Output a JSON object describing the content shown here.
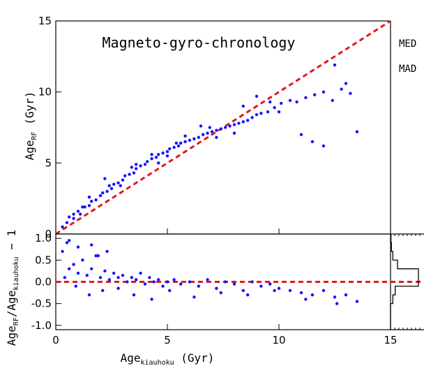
{
  "chart_data": [
    {
      "type": "scatter",
      "title": "Magneto-gyro-chronology",
      "xlabel": "Age_kiauhoku (Gyr)",
      "ylabel": "Age_RF (Gyr)",
      "xlim": [
        0,
        15
      ],
      "ylim": [
        0,
        15
      ],
      "xticks": [
        0,
        5,
        10,
        15
      ],
      "yticks": [
        0,
        5,
        10,
        15
      ],
      "reference_line": "y = x",
      "series": [
        {
          "color": "#1414ff",
          "x": [
            0.3,
            0.5,
            0.6,
            0.8,
            1.0,
            1.1,
            1.3,
            1.5,
            1.6,
            1.8,
            2.0,
            2.1,
            2.3,
            2.5,
            2.6,
            2.8,
            3.0,
            3.1,
            3.3,
            3.5,
            3.6,
            3.8,
            4.0,
            4.1,
            4.3,
            4.5,
            4.6,
            4.8,
            5.0,
            5.1,
            5.3,
            5.5,
            5.6,
            5.8,
            6.0,
            6.2,
            6.4,
            6.6,
            6.8,
            7.0,
            7.2,
            7.4,
            7.6,
            7.8,
            8.0,
            8.2,
            8.4,
            8.6,
            8.8,
            9.0,
            9.2,
            9.5,
            9.8,
            10.1,
            10.5,
            10.8,
            11.2,
            11.6,
            12.0,
            12.4,
            12.8,
            13.2,
            13.5,
            0.8,
            1.5,
            2.2,
            2.9,
            3.6,
            4.3,
            5.0,
            5.8,
            6.5,
            7.2,
            8.0,
            9.0,
            10.0,
            11.0,
            12.0,
            13.0,
            1.2,
            2.4,
            3.4,
            4.6,
            5.4,
            6.9,
            8.4,
            9.6,
            11.5,
            12.5
          ],
          "y": [
            0.5,
            0.8,
            1.2,
            1.1,
            1.6,
            1.4,
            1.9,
            2.0,
            2.3,
            2.4,
            2.7,
            2.9,
            3.0,
            3.2,
            3.5,
            3.6,
            3.8,
            4.1,
            4.2,
            4.3,
            4.6,
            4.8,
            4.9,
            5.1,
            5.3,
            5.4,
            5.6,
            5.7,
            5.8,
            6.0,
            6.1,
            6.2,
            6.4,
            6.5,
            6.6,
            6.7,
            6.8,
            7.0,
            7.1,
            7.2,
            7.3,
            7.4,
            7.5,
            7.6,
            7.7,
            7.8,
            7.9,
            8.0,
            8.2,
            8.4,
            8.5,
            8.6,
            8.9,
            9.2,
            9.4,
            9.3,
            9.6,
            9.8,
            10.0,
            9.4,
            10.2,
            9.9,
            7.2,
            1.4,
            2.6,
            3.9,
            3.4,
            4.9,
            5.6,
            5.5,
            6.9,
            7.6,
            6.8,
            7.1,
            9.7,
            8.6,
            7.0,
            6.2,
            10.6,
            1.9,
            3.4,
            4.7,
            5.0,
            6.4,
            7.5,
            9.0,
            9.3,
            6.5,
            11.9
          ]
        }
      ]
    },
    {
      "type": "scatter",
      "xlabel": "Age_kiauhoku (Gyr)",
      "ylabel": "Age_RF/Age_kiauhoku − 1",
      "xlim": [
        0,
        15
      ],
      "ylim": [
        -1.1,
        1.1
      ],
      "xticks": [
        0,
        5,
        10,
        15
      ],
      "yticks": [
        -1.0,
        -0.5,
        0.0,
        0.5,
        1.0
      ],
      "reference_line": "y = 0",
      "series": [
        {
          "color": "#1414ff",
          "x": [
            0.3,
            0.5,
            0.6,
            0.8,
            1.0,
            1.2,
            1.4,
            1.6,
            1.8,
            2.0,
            2.2,
            2.4,
            2.6,
            2.8,
            3.0,
            3.2,
            3.4,
            3.6,
            3.8,
            4.0,
            4.2,
            4.4,
            4.6,
            4.8,
            5.0,
            5.3,
            5.6,
            6.0,
            6.4,
            6.8,
            7.2,
            7.6,
            8.0,
            8.4,
            8.8,
            9.2,
            9.6,
            10.0,
            10.5,
            11.0,
            11.5,
            12.0,
            12.5,
            13.0,
            13.5,
            0.6,
            1.0,
            1.6,
            1.9,
            2.3,
            0.4,
            0.9,
            1.5,
            2.1,
            2.8,
            3.5,
            4.3,
            5.1,
            6.2,
            7.4,
            8.6,
            9.8,
            11.2,
            12.6
          ],
          "y": [
            0.7,
            0.9,
            0.3,
            0.4,
            0.2,
            0.5,
            0.15,
            0.3,
            0.6,
            0.1,
            0.25,
            0.05,
            0.2,
            0.1,
            0.15,
            0.0,
            0.1,
            0.05,
            0.2,
            -0.05,
            0.1,
            0.0,
            0.05,
            -0.1,
            0.0,
            0.05,
            -0.05,
            0.0,
            -0.1,
            0.05,
            -0.15,
            0.0,
            -0.05,
            -0.2,
            0.0,
            -0.1,
            -0.05,
            -0.15,
            -0.2,
            -0.25,
            -0.3,
            -0.2,
            -0.35,
            -0.3,
            -0.45,
            0.95,
            0.8,
            0.85,
            0.6,
            0.7,
            0.1,
            -0.1,
            -0.3,
            -0.2,
            -0.15,
            -0.3,
            -0.4,
            -0.2,
            -0.35,
            -0.25,
            -0.3,
            -0.2,
            -0.4,
            -0.5
          ]
        }
      ]
    },
    {
      "type": "histogram",
      "orientation": "horizontal",
      "ylim": [
        -1.1,
        1.1
      ],
      "bins": [
        -1.1,
        -0.9,
        -0.7,
        -0.5,
        -0.3,
        -0.1,
        0.1,
        0.3,
        0.5,
        0.7,
        0.9,
        1.1
      ],
      "counts": [
        0,
        0,
        0,
        0.05,
        0.1,
        0.6,
        0.6,
        0.15,
        0.05,
        0.02,
        0.01
      ]
    }
  ],
  "side_labels": [
    "MED",
    "MAD"
  ]
}
